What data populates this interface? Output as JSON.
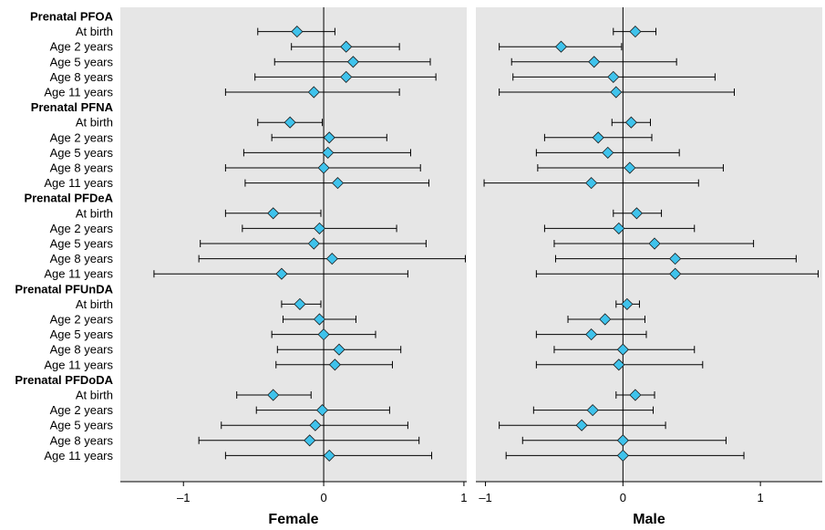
{
  "colors": {
    "panel_background": "#e6e6e6",
    "marker_fill": "#3fc3ec",
    "marker_stroke": "#1a1a1a",
    "line": "#000000"
  },
  "chart_data": [
    {
      "type": "forest",
      "title": "Female",
      "xlim": [
        -1.45,
        1.02
      ],
      "x_ticks": [
        -1,
        0,
        1
      ],
      "x_tick_labels": [
        "–1",
        "0",
        "1"
      ],
      "reference_line": 0,
      "groups": [
        {
          "label": "Prenatal PFOA",
          "rows": [
            {
              "label": "At birth",
              "estimate": -0.19,
              "lower": -0.47,
              "upper": 0.08
            },
            {
              "label": "Age 2 years",
              "estimate": 0.16,
              "lower": -0.23,
              "upper": 0.54
            },
            {
              "label": "Age 5 years",
              "estimate": 0.21,
              "lower": -0.35,
              "upper": 0.76
            },
            {
              "label": "Age 8 years",
              "estimate": 0.16,
              "lower": -0.49,
              "upper": 0.8
            },
            {
              "label": "Age 11 years",
              "estimate": -0.07,
              "lower": -0.7,
              "upper": 0.54
            }
          ]
        },
        {
          "label": "Prenatal PFNA",
          "rows": [
            {
              "label": "At birth",
              "estimate": -0.24,
              "lower": -0.47,
              "upper": -0.01
            },
            {
              "label": "Age 2 years",
              "estimate": 0.04,
              "lower": -0.37,
              "upper": 0.45
            },
            {
              "label": "Age 5 years",
              "estimate": 0.03,
              "lower": -0.57,
              "upper": 0.62
            },
            {
              "label": "Age 8 years",
              "estimate": 0.0,
              "lower": -0.7,
              "upper": 0.69
            },
            {
              "label": "Age 11 years",
              "estimate": 0.1,
              "lower": -0.56,
              "upper": 0.75
            }
          ]
        },
        {
          "label": "Prenatal PFDeA",
          "rows": [
            {
              "label": "At birth",
              "estimate": -0.36,
              "lower": -0.7,
              "upper": -0.02
            },
            {
              "label": "Age 2 years",
              "estimate": -0.03,
              "lower": -0.58,
              "upper": 0.52
            },
            {
              "label": "Age 5 years",
              "estimate": -0.07,
              "lower": -0.88,
              "upper": 0.73
            },
            {
              "label": "Age 8 years",
              "estimate": 0.06,
              "lower": -0.89,
              "upper": 1.01
            },
            {
              "label": "Age 11 years",
              "estimate": -0.3,
              "lower": -1.21,
              "upper": 0.6
            }
          ]
        },
        {
          "label": "Prenatal PFUnDA",
          "rows": [
            {
              "label": "At birth",
              "estimate": -0.17,
              "lower": -0.3,
              "upper": -0.02
            },
            {
              "label": "Age 2 years",
              "estimate": -0.03,
              "lower": -0.29,
              "upper": 0.23
            },
            {
              "label": "Age 5 years",
              "estimate": 0.0,
              "lower": -0.37,
              "upper": 0.37
            },
            {
              "label": "Age 8 years",
              "estimate": 0.11,
              "lower": -0.33,
              "upper": 0.55
            },
            {
              "label": "Age 11 years",
              "estimate": 0.08,
              "lower": -0.34,
              "upper": 0.49
            }
          ]
        },
        {
          "label": "Prenatal PFDoDA",
          "rows": [
            {
              "label": "At birth",
              "estimate": -0.36,
              "lower": -0.62,
              "upper": -0.09
            },
            {
              "label": "Age 2 years",
              "estimate": -0.01,
              "lower": -0.48,
              "upper": 0.47
            },
            {
              "label": "Age 5 years",
              "estimate": -0.06,
              "lower": -0.73,
              "upper": 0.6
            },
            {
              "label": "Age 8 years",
              "estimate": -0.1,
              "lower": -0.89,
              "upper": 0.68
            },
            {
              "label": "Age 11 years",
              "estimate": 0.04,
              "lower": -0.7,
              "upper": 0.77
            }
          ]
        }
      ]
    },
    {
      "type": "forest",
      "title": "Male",
      "xlim": [
        -1.07,
        1.45
      ],
      "x_ticks": [
        -1,
        0,
        1
      ],
      "x_tick_labels": [
        "–1",
        "0",
        "1"
      ],
      "reference_line": 0,
      "groups": [
        {
          "label": "Prenatal PFOA",
          "rows": [
            {
              "label": "At birth",
              "estimate": 0.09,
              "lower": -0.07,
              "upper": 0.24
            },
            {
              "label": "Age 2 years",
              "estimate": -0.45,
              "lower": -0.9,
              "upper": -0.01
            },
            {
              "label": "Age 5 years",
              "estimate": -0.21,
              "lower": -0.81,
              "upper": 0.39
            },
            {
              "label": "Age 8 years",
              "estimate": -0.07,
              "lower": -0.8,
              "upper": 0.67
            },
            {
              "label": "Age 11 years",
              "estimate": -0.05,
              "lower": -0.9,
              "upper": 0.81
            }
          ]
        },
        {
          "label": "Prenatal PFNA",
          "rows": [
            {
              "label": "At birth",
              "estimate": 0.06,
              "lower": -0.08,
              "upper": 0.2
            },
            {
              "label": "Age 2 years",
              "estimate": -0.18,
              "lower": -0.57,
              "upper": 0.21
            },
            {
              "label": "Age 5 years",
              "estimate": -0.11,
              "lower": -0.63,
              "upper": 0.41
            },
            {
              "label": "Age 8 years",
              "estimate": 0.05,
              "lower": -0.62,
              "upper": 0.73
            },
            {
              "label": "Age 11 years",
              "estimate": -0.23,
              "lower": -1.01,
              "upper": 0.55
            }
          ]
        },
        {
          "label": "Prenatal PFDeA",
          "rows": [
            {
              "label": "At birth",
              "estimate": 0.1,
              "lower": -0.07,
              "upper": 0.28
            },
            {
              "label": "Age 2 years",
              "estimate": -0.03,
              "lower": -0.57,
              "upper": 0.52
            },
            {
              "label": "Age 5 years",
              "estimate": 0.23,
              "lower": -0.5,
              "upper": 0.95
            },
            {
              "label": "Age 8 years",
              "estimate": 0.38,
              "lower": -0.49,
              "upper": 1.26
            },
            {
              "label": "Age 11 years",
              "estimate": 0.38,
              "lower": -0.63,
              "upper": 1.42
            }
          ]
        },
        {
          "label": "Prenatal PFUnDA",
          "rows": [
            {
              "label": "At birth",
              "estimate": 0.03,
              "lower": -0.05,
              "upper": 0.12
            },
            {
              "label": "Age 2 years",
              "estimate": -0.13,
              "lower": -0.4,
              "upper": 0.16
            },
            {
              "label": "Age 5 years",
              "estimate": -0.23,
              "lower": -0.63,
              "upper": 0.17
            },
            {
              "label": "Age 8 years",
              "estimate": 0.0,
              "lower": -0.5,
              "upper": 0.52
            },
            {
              "label": "Age 11 years",
              "estimate": -0.03,
              "lower": -0.63,
              "upper": 0.58
            }
          ]
        },
        {
          "label": "Prenatal PFDoDA",
          "rows": [
            {
              "label": "At birth",
              "estimate": 0.09,
              "lower": -0.05,
              "upper": 0.23
            },
            {
              "label": "Age 2 years",
              "estimate": -0.22,
              "lower": -0.65,
              "upper": 0.22
            },
            {
              "label": "Age 5 years",
              "estimate": -0.3,
              "lower": -0.9,
              "upper": 0.31
            },
            {
              "label": "Age 8 years",
              "estimate": 0.0,
              "lower": -0.73,
              "upper": 0.75
            },
            {
              "label": "Age 11 years",
              "estimate": 0.0,
              "lower": -0.85,
              "upper": 0.88
            }
          ]
        }
      ]
    }
  ]
}
